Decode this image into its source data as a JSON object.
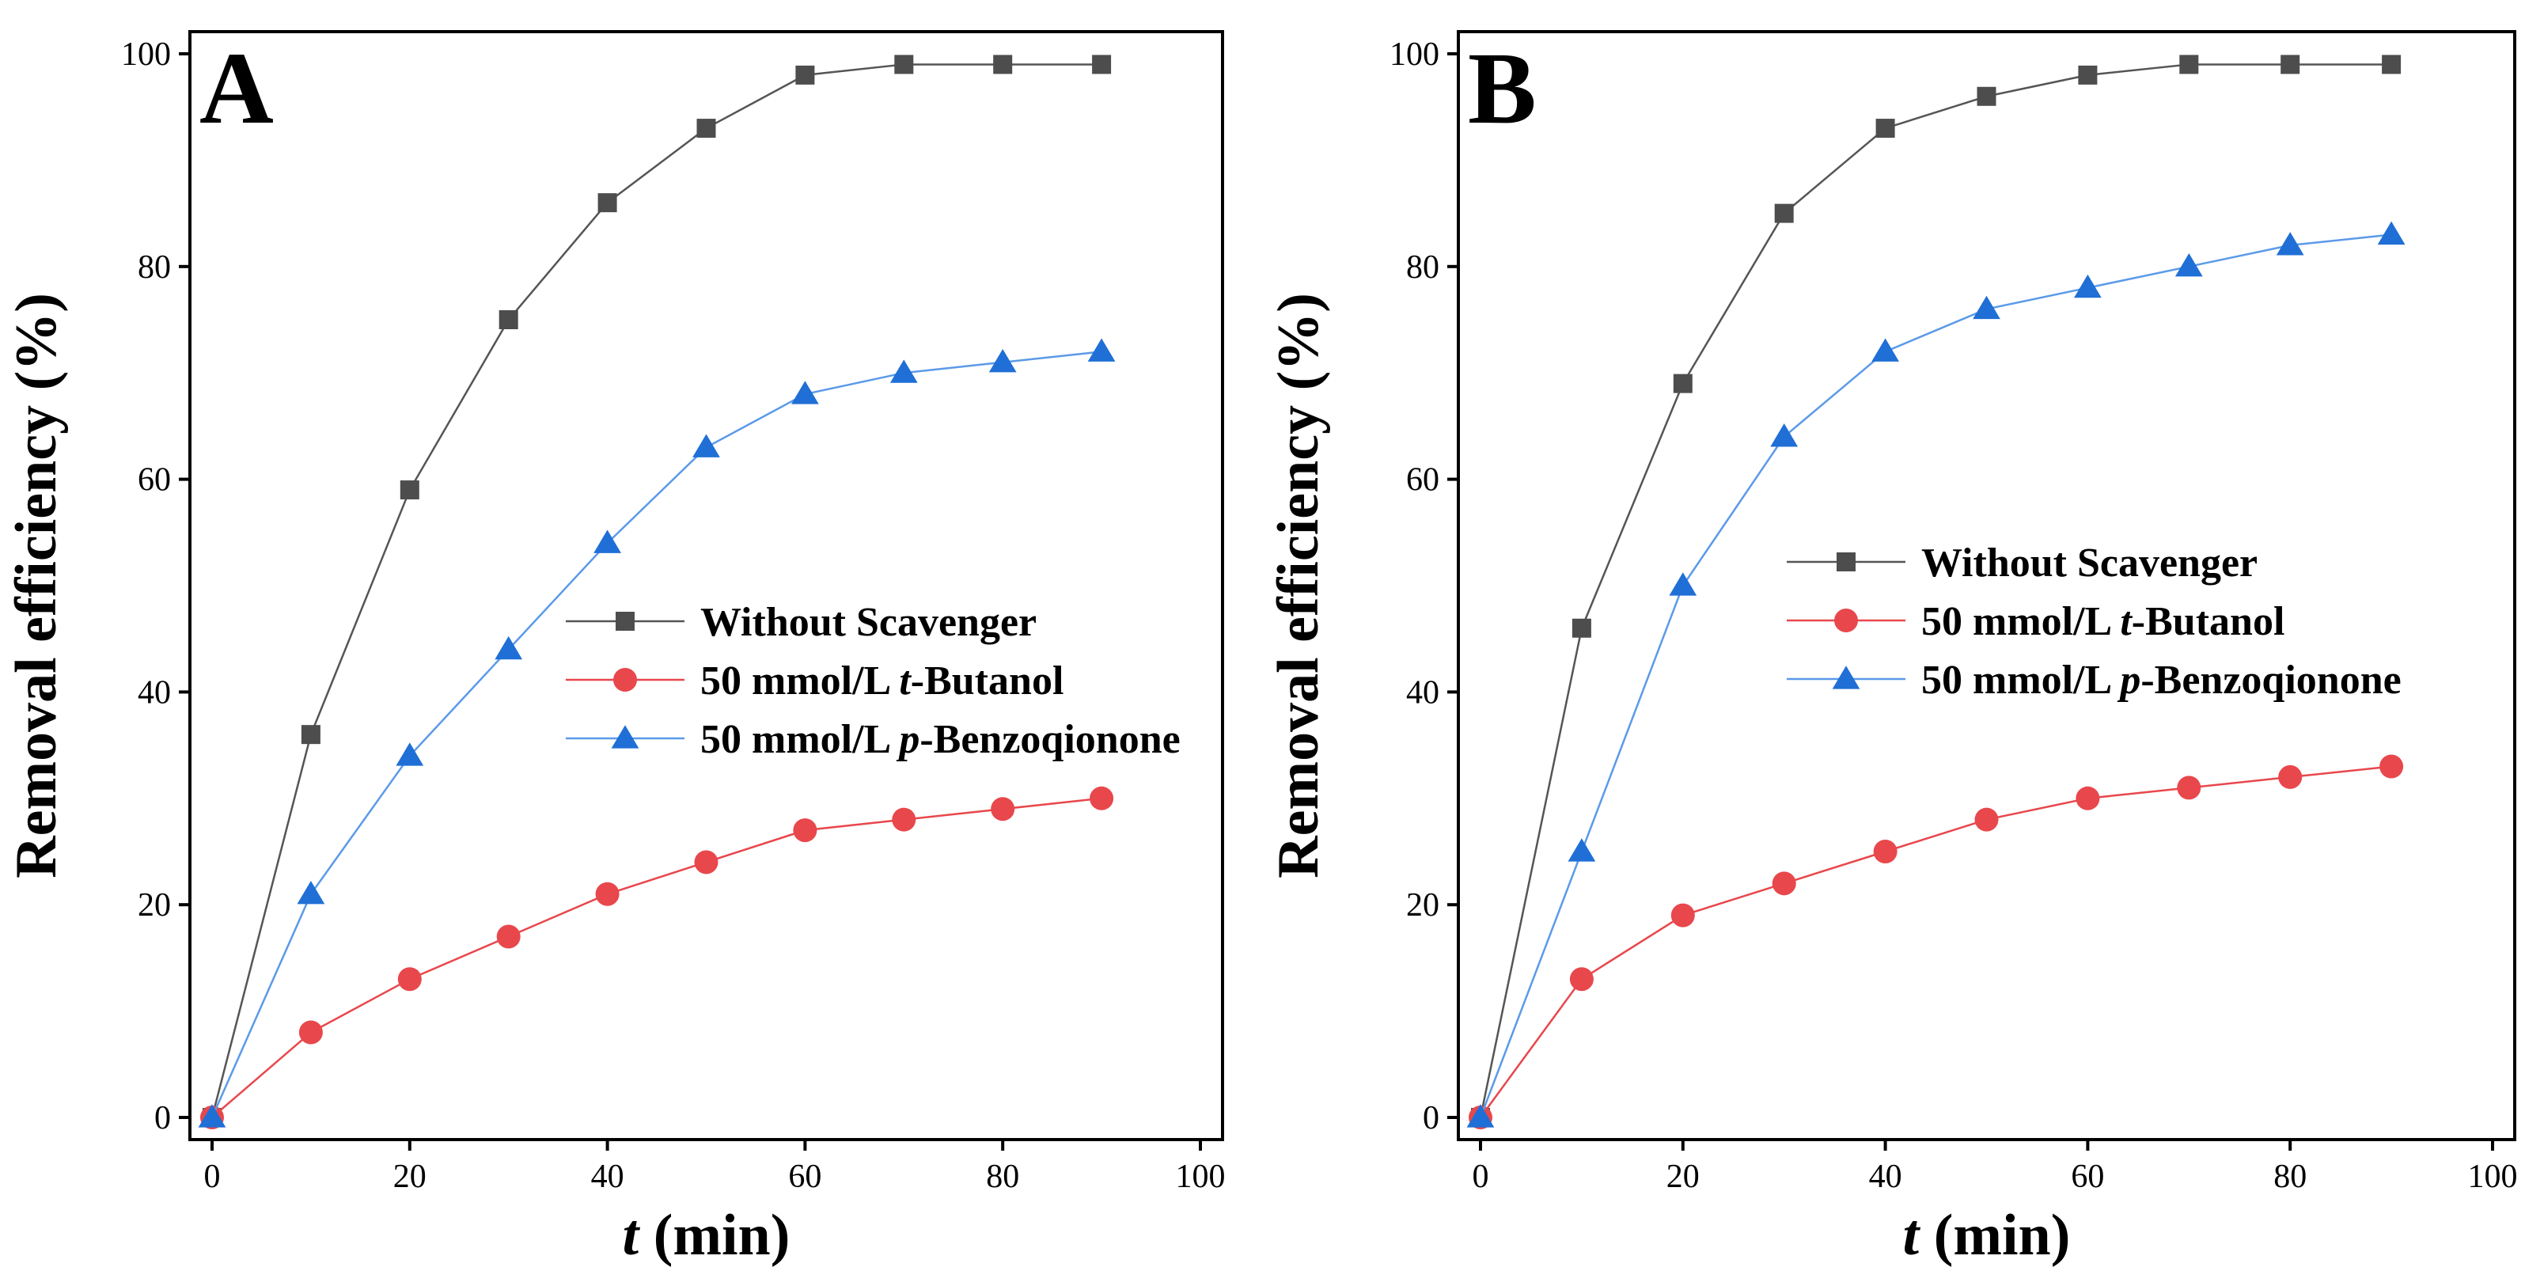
{
  "chart_data": [
    {
      "panel": "A",
      "type": "line",
      "xlabel_var": "t",
      "xlabel_unit": " (min)",
      "ylabel": "Removal efficiency (%)",
      "xlim": [
        0,
        100
      ],
      "ylim": [
        0,
        100
      ],
      "x_ticks": [
        0,
        20,
        40,
        60,
        80,
        100
      ],
      "y_ticks": [
        0,
        20,
        40,
        60,
        80,
        100
      ],
      "legend_position": "center-right",
      "x": [
        0,
        10,
        20,
        30,
        40,
        50,
        60,
        70,
        80,
        90
      ],
      "series": [
        {
          "name_parts": [
            "Without Scavenger",
            "",
            ""
          ],
          "marker": "square",
          "color": "#4d4d4d",
          "line_color": "#555555",
          "values": [
            0,
            36,
            59,
            75,
            86,
            93,
            98,
            99,
            99,
            99
          ]
        },
        {
          "name_parts": [
            "50 mmol/L ",
            "t",
            "-Butanol"
          ],
          "marker": "circle",
          "color": "#e8474c",
          "line_color": "#e8474c",
          "values": [
            0,
            8,
            13,
            17,
            21,
            24,
            27,
            28,
            29,
            30
          ]
        },
        {
          "name_parts": [
            "50 mmol/L ",
            "p",
            "-Benzoqionone"
          ],
          "marker": "triangle",
          "color": "#1f6fd6",
          "line_color": "#5b9ae8",
          "values": [
            0,
            21,
            34,
            44,
            54,
            63,
            68,
            70,
            71,
            72
          ]
        }
      ]
    },
    {
      "panel": "B",
      "type": "line",
      "xlabel_var": "t",
      "xlabel_unit": " (min)",
      "ylabel": "Removal efficiency (%)",
      "xlim": [
        0,
        100
      ],
      "ylim": [
        0,
        100
      ],
      "x_ticks": [
        0,
        20,
        40,
        60,
        80,
        100
      ],
      "y_ticks": [
        0,
        20,
        40,
        60,
        80,
        100
      ],
      "legend_position": "center-right",
      "x": [
        0,
        10,
        20,
        30,
        40,
        50,
        60,
        70,
        80,
        90
      ],
      "series": [
        {
          "name_parts": [
            "Without Scavenger",
            "",
            ""
          ],
          "marker": "square",
          "color": "#4d4d4d",
          "line_color": "#555555",
          "values": [
            0,
            46,
            69,
            85,
            93,
            96,
            98,
            99,
            99,
            99
          ]
        },
        {
          "name_parts": [
            "50 mmol/L ",
            "t",
            "-Butanol"
          ],
          "marker": "circle",
          "color": "#e8474c",
          "line_color": "#e8474c",
          "values": [
            0,
            13,
            19,
            22,
            25,
            28,
            30,
            31,
            32,
            33
          ]
        },
        {
          "name_parts": [
            "50 mmol/L ",
            "p",
            "-Benzoqionone"
          ],
          "marker": "triangle",
          "color": "#1f6fd6",
          "line_color": "#5b9ae8",
          "values": [
            0,
            25,
            50,
            64,
            72,
            76,
            78,
            80,
            82,
            83
          ]
        }
      ]
    }
  ]
}
